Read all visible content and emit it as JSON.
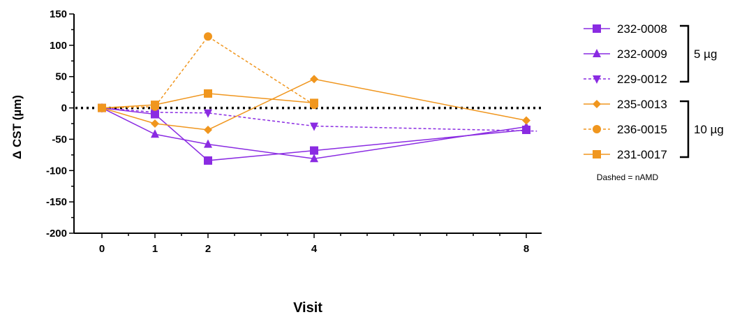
{
  "chart_data": {
    "type": "line",
    "xlabel": "Visit",
    "ylabel": "Δ CST (µm)",
    "x_ticks": [
      0,
      1,
      2,
      4,
      8
    ],
    "xlim": [
      -0.5,
      8.2
    ],
    "ylim": [
      -200,
      150
    ],
    "y_ticks": [
      150,
      100,
      50,
      0,
      -50,
      -100,
      -150,
      -200
    ],
    "reference_line": {
      "y": 0,
      "style": "dotted"
    },
    "colors": {
      "purple": "#8a2be2",
      "orange": "#f0961e"
    },
    "series": [
      {
        "name": "232-0008",
        "marker": "square",
        "color": "#8a2be2",
        "dashed": false,
        "x": [
          0,
          1,
          2,
          4,
          8
        ],
        "y": [
          0,
          -10,
          -84,
          -68,
          -35
        ]
      },
      {
        "name": "232-0009",
        "marker": "triangle-up",
        "color": "#8a2be2",
        "dashed": false,
        "x": [
          0,
          1,
          2,
          4,
          8
        ],
        "y": [
          0,
          -42,
          -58,
          -81,
          -30
        ]
      },
      {
        "name": "229-0012",
        "marker": "triangle-down",
        "color": "#8a2be2",
        "dashed": true,
        "x": [
          0,
          1,
          2,
          4,
          8.2
        ],
        "y": [
          0,
          -7,
          -8,
          -29,
          -37
        ]
      },
      {
        "name": "235-0013",
        "marker": "diamond",
        "color": "#f0961e",
        "dashed": false,
        "x": [
          0,
          1,
          2,
          4,
          8
        ],
        "y": [
          0,
          -25,
          -35,
          46,
          -20
        ]
      },
      {
        "name": "236-0015",
        "marker": "circle",
        "color": "#f0961e",
        "dashed": true,
        "x": [
          0,
          1,
          2,
          4
        ],
        "y": [
          0,
          2,
          114,
          5
        ]
      },
      {
        "name": "231-0017",
        "marker": "square",
        "color": "#f0961e",
        "dashed": false,
        "x": [
          0,
          1,
          2,
          4
        ],
        "y": [
          0,
          5,
          23,
          8
        ]
      }
    ],
    "legend": {
      "placement": "right",
      "groups": [
        {
          "label": "5 µg",
          "series": [
            "232-0008",
            "232-0009",
            "229-0012"
          ]
        },
        {
          "label": "10 µg",
          "series": [
            "235-0013",
            "236-0015",
            "231-0017"
          ]
        }
      ],
      "note": "Dashed = nAMD"
    }
  }
}
